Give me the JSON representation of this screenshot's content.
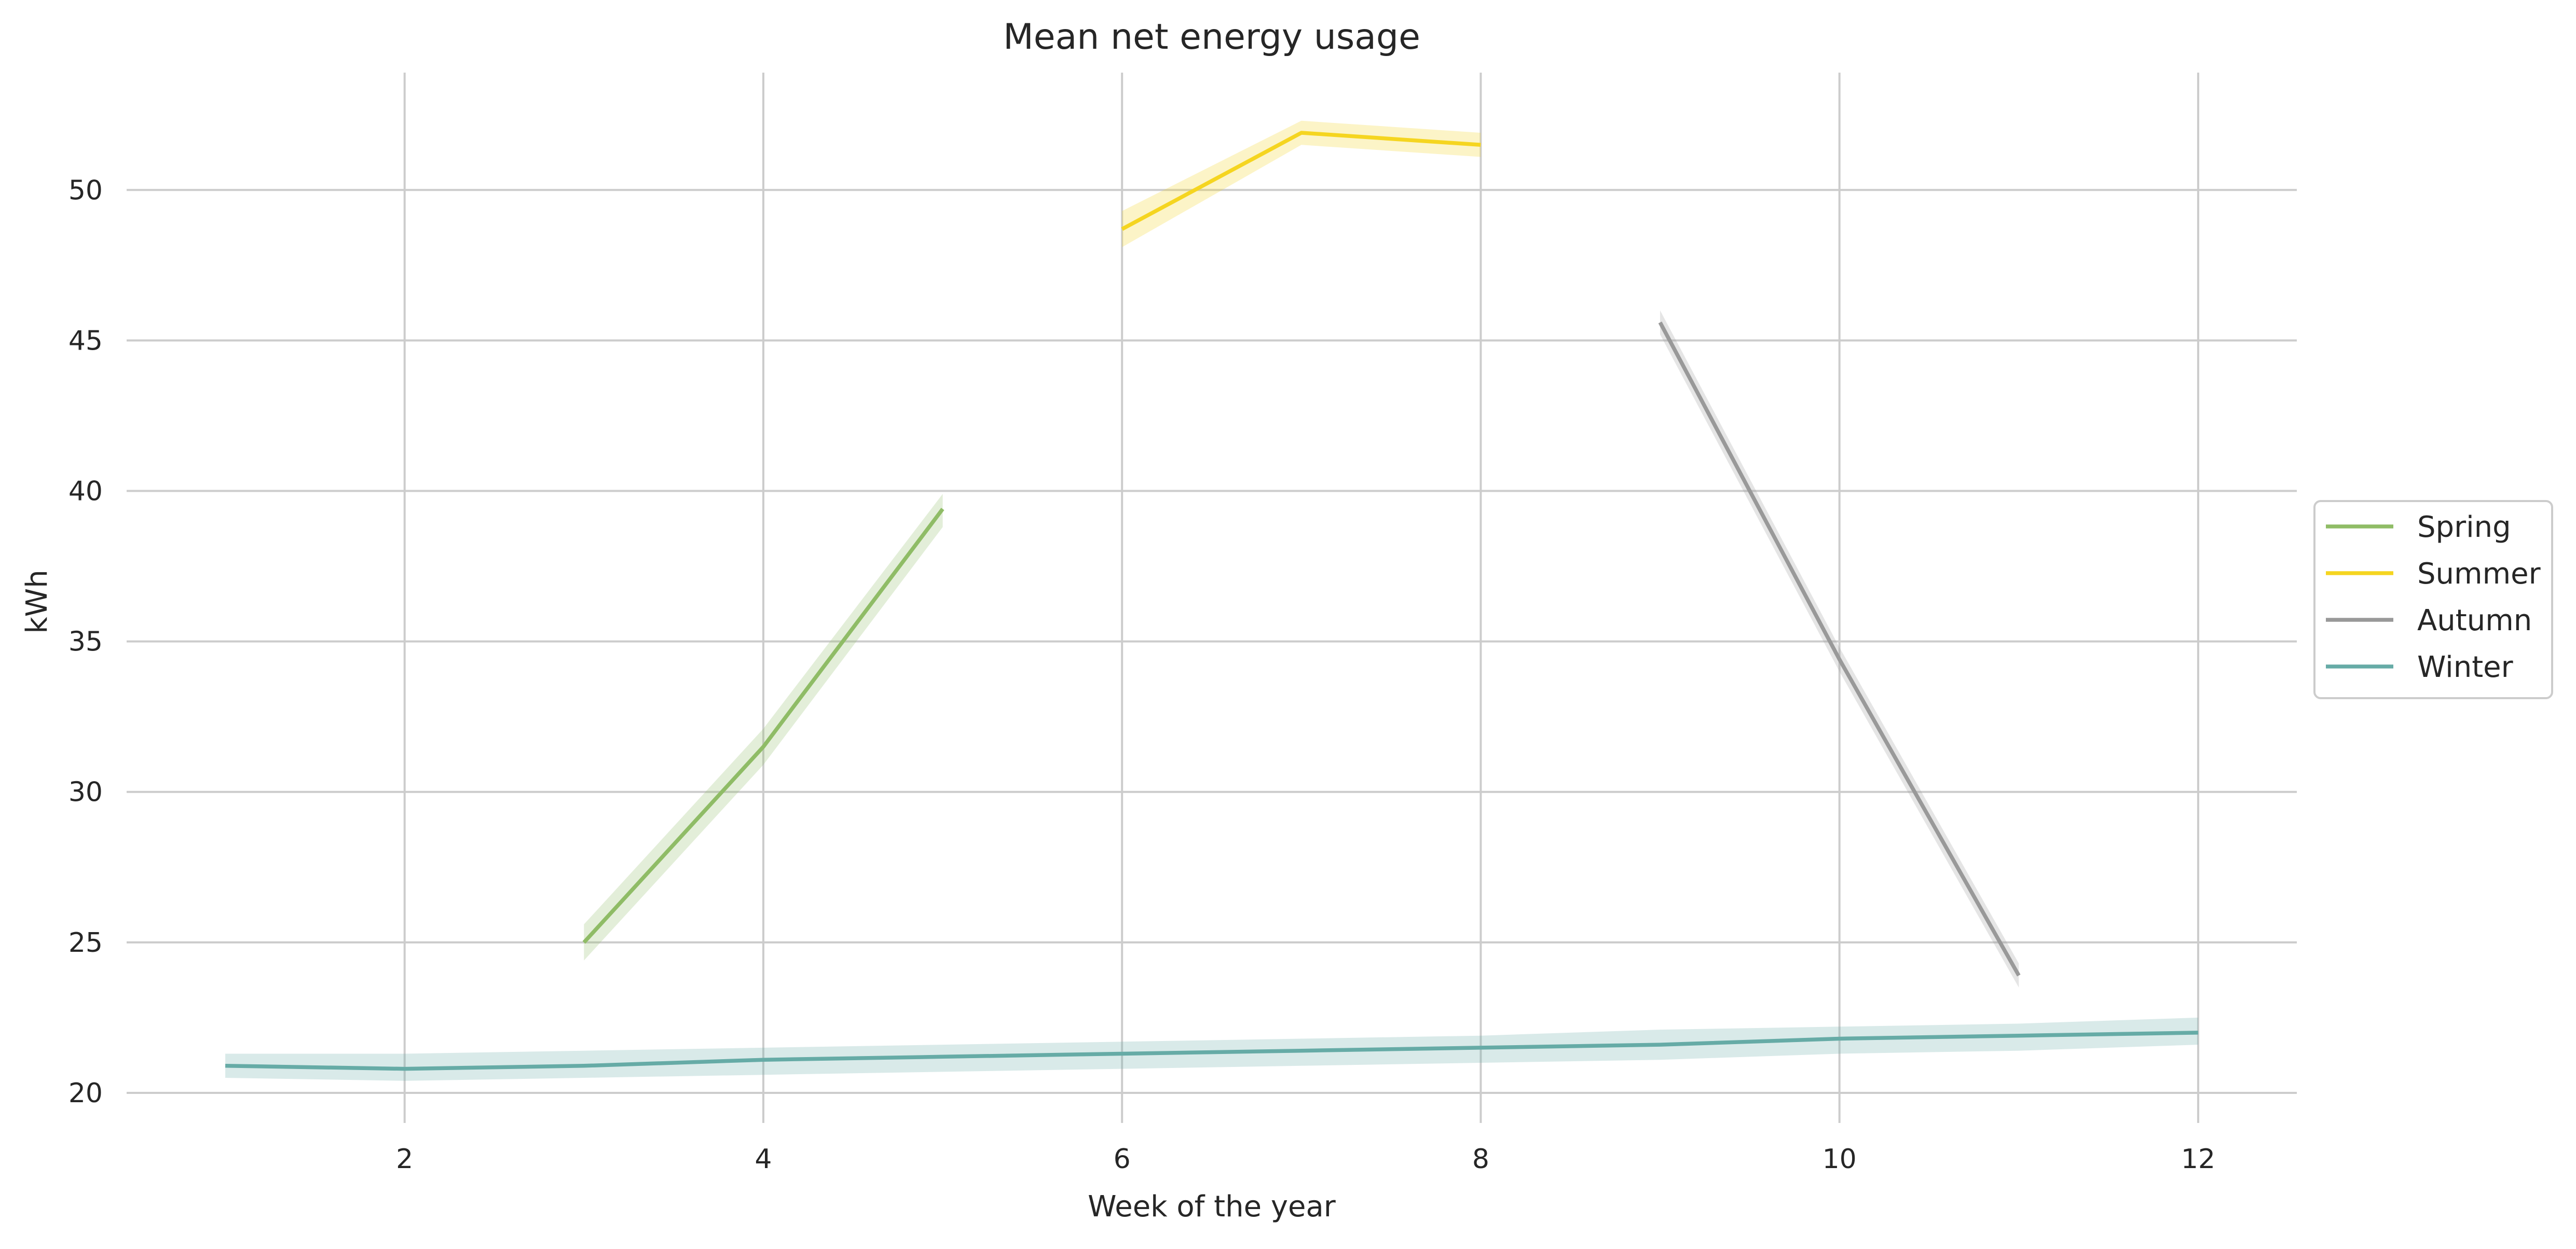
{
  "chart_data": {
    "type": "line",
    "title": "Mean net energy usage",
    "xlabel": "Week of the year",
    "ylabel": "kWh",
    "xlim": [
      0.45,
      12.55
    ],
    "ylim": [
      19,
      53.9
    ],
    "xticks": [
      2,
      4,
      6,
      8,
      10,
      12
    ],
    "yticks": [
      20,
      25,
      30,
      35,
      40,
      45,
      50
    ],
    "grid": true,
    "legend_position": "right",
    "series": [
      {
        "name": "Spring",
        "color": "#8fbc66",
        "x": [
          3,
          4,
          5
        ],
        "y": [
          25.0,
          31.5,
          39.4
        ],
        "ci_lower": [
          24.4,
          30.9,
          38.8
        ],
        "ci_upper": [
          25.6,
          32.1,
          39.9
        ]
      },
      {
        "name": "Summer",
        "color": "#f5d520",
        "x": [
          6,
          7,
          8
        ],
        "y": [
          48.7,
          51.9,
          51.5
        ],
        "ci_lower": [
          48.1,
          51.5,
          51.1
        ],
        "ci_upper": [
          49.3,
          52.3,
          51.9
        ]
      },
      {
        "name": "Autumn",
        "color": "#999999",
        "x": [
          9,
          10,
          11
        ],
        "y": [
          45.6,
          34.4,
          23.9
        ],
        "ci_lower": [
          45.2,
          34.0,
          23.5
        ],
        "ci_upper": [
          46.0,
          34.8,
          24.3
        ]
      },
      {
        "name": "Winter",
        "color": "#66aba6",
        "x": [
          1,
          2,
          3,
          4,
          5,
          6,
          7,
          8,
          9,
          10,
          11,
          12
        ],
        "y": [
          20.9,
          20.8,
          20.9,
          21.1,
          21.2,
          21.3,
          21.4,
          21.5,
          21.6,
          21.8,
          21.9,
          22.0
        ],
        "ci_lower": [
          20.5,
          20.4,
          20.5,
          20.6,
          20.7,
          20.8,
          20.9,
          21.0,
          21.1,
          21.3,
          21.4,
          21.6
        ],
        "ci_upper": [
          21.3,
          21.3,
          21.4,
          21.5,
          21.6,
          21.7,
          21.8,
          21.9,
          22.1,
          22.2,
          22.3,
          22.5
        ]
      }
    ]
  }
}
